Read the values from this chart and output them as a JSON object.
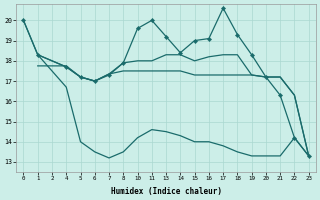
{
  "xlabel": "Humidex (Indice chaleur)",
  "bg_color": "#cceee8",
  "grid_color": "#aad8d0",
  "line_color": "#1a6b6b",
  "yticks": [
    13,
    14,
    15,
    16,
    17,
    18,
    19,
    20
  ],
  "ylim": [
    12.5,
    20.8
  ],
  "xtick_labels": [
    "0",
    "1",
    "2",
    "4",
    "5",
    "6",
    "7",
    "8",
    "10",
    "11",
    "13",
    "14",
    "15",
    "16",
    "17",
    "18",
    "19",
    "20",
    "21",
    "22",
    "23"
  ],
  "line1_x": [
    0,
    1,
    3,
    4,
    5,
    6,
    7,
    8,
    9,
    10,
    11,
    12,
    13,
    14,
    15,
    16,
    17,
    18,
    19,
    20
  ],
  "line1_y": [
    20.0,
    18.3,
    17.7,
    17.2,
    17.0,
    17.3,
    17.9,
    19.6,
    20.0,
    19.2,
    18.4,
    19.0,
    19.1,
    20.6,
    19.3,
    18.3,
    17.2,
    16.3,
    14.2,
    13.3
  ],
  "line2_x": [
    1,
    3,
    4,
    5,
    6,
    7,
    8,
    9,
    10,
    11,
    12,
    13,
    14,
    15,
    16,
    17,
    18,
    19,
    20
  ],
  "line2_y": [
    18.3,
    17.7,
    17.2,
    17.0,
    17.35,
    17.9,
    18.0,
    18.0,
    18.3,
    18.3,
    18.0,
    18.2,
    18.3,
    18.3,
    17.3,
    17.2,
    17.2,
    16.3,
    13.3
  ],
  "line3_x": [
    1,
    3,
    4,
    5,
    6,
    7,
    8,
    9,
    10,
    11,
    12,
    13,
    14,
    15,
    16,
    17,
    18,
    19,
    20
  ],
  "line3_y": [
    17.75,
    17.75,
    17.2,
    17.0,
    17.35,
    17.5,
    17.5,
    17.5,
    17.5,
    17.5,
    17.3,
    17.3,
    17.3,
    17.3,
    17.3,
    17.2,
    17.2,
    16.3,
    13.3
  ],
  "line4_x": [
    0,
    1,
    3,
    4,
    5,
    6,
    7,
    8,
    9,
    10,
    11,
    12,
    13,
    14,
    15,
    16,
    17,
    18,
    19,
    20
  ],
  "line4_y": [
    20.0,
    18.3,
    16.7,
    14.0,
    13.5,
    13.2,
    13.5,
    14.2,
    14.6,
    14.5,
    14.3,
    14.0,
    14.0,
    13.8,
    13.5,
    13.3,
    13.3,
    13.3,
    14.2,
    13.3
  ]
}
